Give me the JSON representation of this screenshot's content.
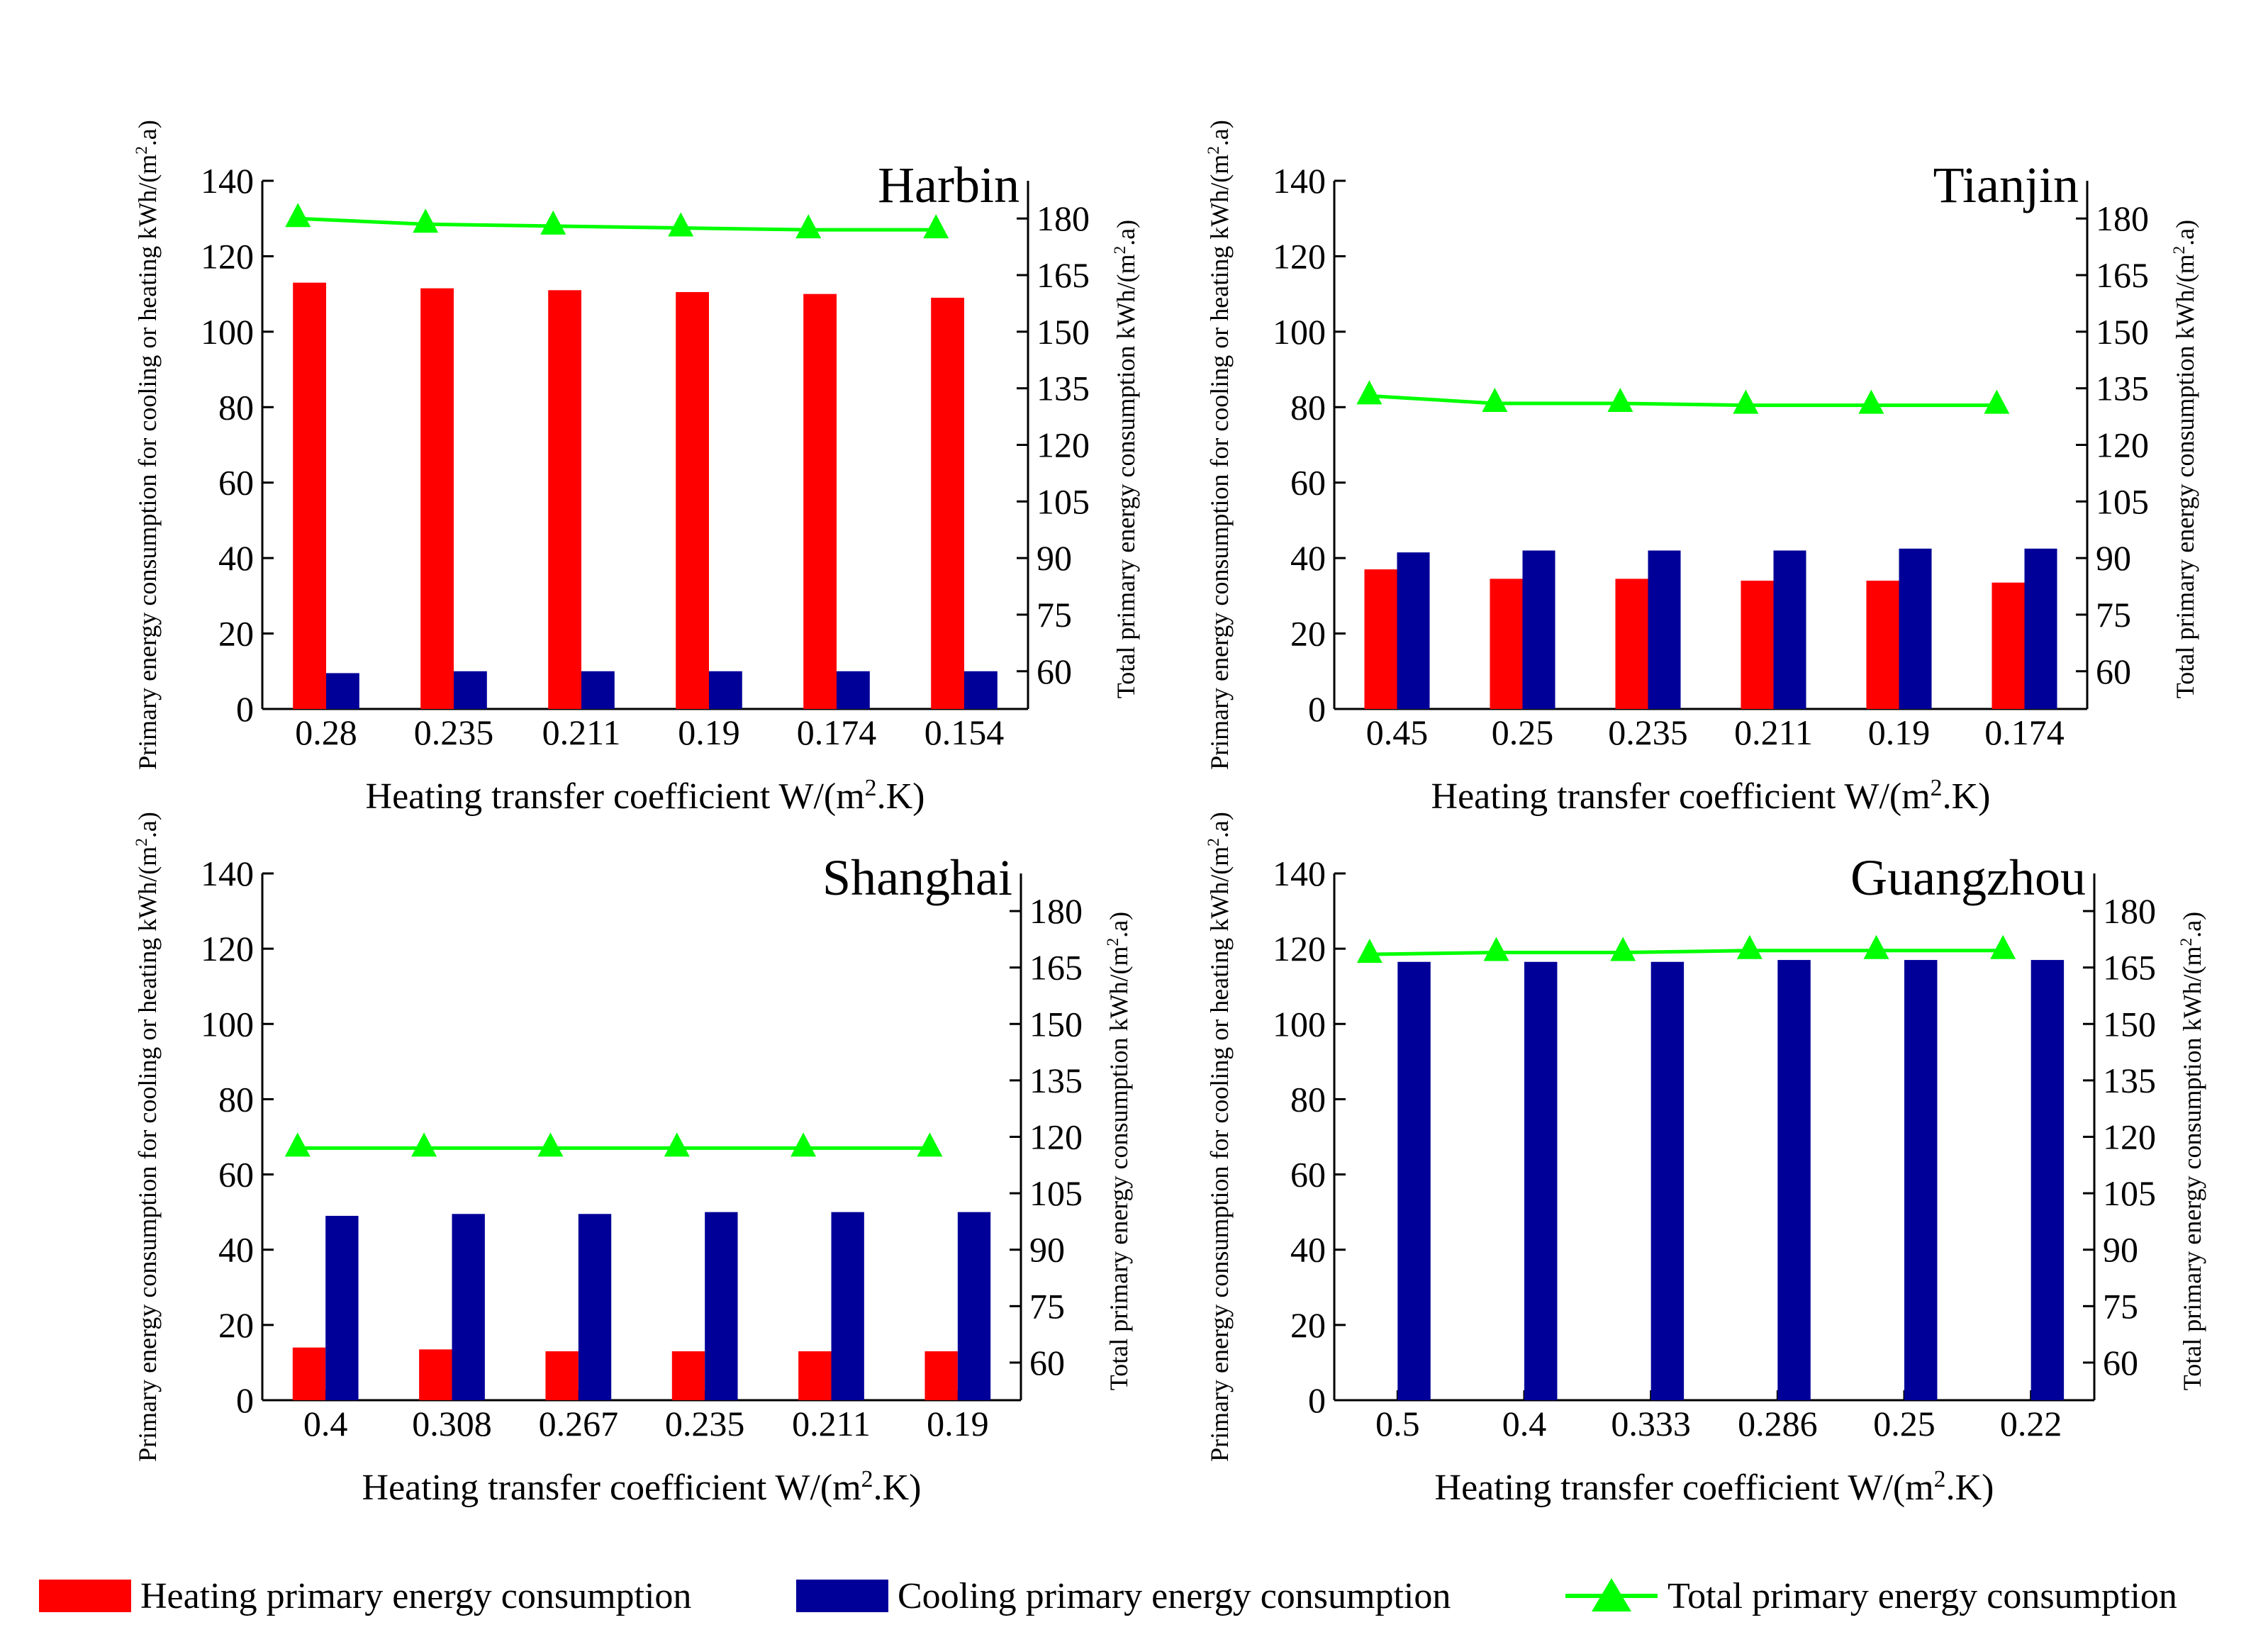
{
  "colors": {
    "heating": "#ff0000",
    "cooling": "#000099",
    "total": "#00ff00",
    "axis": "#000000"
  },
  "legend": {
    "heating_label": "Heating primary energy consumption",
    "cooling_label": "Cooling primary energy consumption",
    "total_label": "Total primary energy consumption"
  },
  "chart_data": [
    {
      "type": "bar",
      "title": "Harbin",
      "xlabel": "Heating transfer coefficient W/(m².K)",
      "ylabel": "Primary energy consumption for cooling or heating kWh/(m².a)",
      "y2label": "Total primary energy consumption kWh/(m².a)",
      "categories": [
        "0.28",
        "0.235",
        "0.211",
        "0.19",
        "0.174",
        "0.154"
      ],
      "ylim": [
        0,
        140
      ],
      "yticks": [
        "0",
        "20",
        "40",
        "60",
        "80",
        "100",
        "120",
        "140"
      ],
      "y2lim": [
        50,
        190
      ],
      "y2ticks": [
        "60",
        "75",
        "90",
        "105",
        "120",
        "135",
        "150",
        "165",
        "180"
      ],
      "series": [
        {
          "name": "Heating primary energy consumption",
          "axis": "left",
          "kind": "bar",
          "values": [
            113,
            111.5,
            111,
            110.5,
            110,
            109
          ]
        },
        {
          "name": "Cooling primary energy consumption",
          "axis": "left",
          "kind": "bar",
          "values": [
            9.5,
            10,
            10,
            10,
            10,
            10
          ]
        },
        {
          "name": "Total primary energy consumption",
          "axis": "right",
          "kind": "line",
          "values": [
            180,
            178.5,
            178,
            177.5,
            177,
            177
          ]
        }
      ]
    },
    {
      "type": "bar",
      "title": "Tianjin",
      "xlabel": "Heating transfer coefficient W/(m².K)",
      "ylabel": "Primary energy consumption for cooling or heating kWh/(m².a)",
      "y2label": "Total primary energy consumption kWh/(m².a)",
      "categories": [
        "0.45",
        "0.25",
        "0.235",
        "0.211",
        "0.19",
        "0.174"
      ],
      "ylim": [
        0,
        140
      ],
      "yticks": [
        "0",
        "20",
        "40",
        "60",
        "80",
        "100",
        "120",
        "140"
      ],
      "y2lim": [
        50,
        190
      ],
      "y2ticks": [
        "60",
        "75",
        "90",
        "105",
        "120",
        "135",
        "150",
        "165",
        "180"
      ],
      "series": [
        {
          "name": "Heating primary energy consumption",
          "axis": "left",
          "kind": "bar",
          "values": [
            37,
            34.5,
            34.5,
            34,
            34,
            33.5
          ]
        },
        {
          "name": "Cooling primary energy consumption",
          "axis": "left",
          "kind": "bar",
          "values": [
            41.5,
            42,
            42,
            42,
            42.5,
            42.5
          ]
        },
        {
          "name": "Total primary energy consumption",
          "axis": "right",
          "kind": "line",
          "values": [
            133,
            131,
            131,
            130.5,
            130.5,
            130.5
          ]
        }
      ]
    },
    {
      "type": "bar",
      "title": "Shanghai",
      "xlabel": "Heating transfer coefficient W/(m².K)",
      "ylabel": "Primary energy consumption for cooling or heating kWh/(m².a)",
      "y2label": "Total primary energy consumption kWh/(m².a)",
      "categories": [
        "0.4",
        "0.308",
        "0.267",
        "0.235",
        "0.211",
        "0.19"
      ],
      "ylim": [
        0,
        140
      ],
      "yticks": [
        "0",
        "20",
        "40",
        "60",
        "80",
        "100",
        "120",
        "140"
      ],
      "y2lim": [
        50,
        190
      ],
      "y2ticks": [
        "60",
        "75",
        "90",
        "105",
        "120",
        "135",
        "150",
        "165",
        "180"
      ],
      "series": [
        {
          "name": "Heating primary energy consumption",
          "axis": "left",
          "kind": "bar",
          "values": [
            14,
            13.5,
            13,
            13,
            13,
            13
          ]
        },
        {
          "name": "Cooling primary energy consumption",
          "axis": "left",
          "kind": "bar",
          "values": [
            49,
            49.5,
            49.5,
            50,
            50,
            50
          ]
        },
        {
          "name": "Total primary energy consumption",
          "axis": "right",
          "kind": "line",
          "values": [
            117,
            117,
            117,
            117,
            117,
            117
          ]
        }
      ]
    },
    {
      "type": "bar",
      "title": "Guangzhou",
      "xlabel": "Heating transfer coefficient W/(m².K)",
      "ylabel": "Primary energy consumption for cooling or heating kWh/(m².a)",
      "y2label": "Total primary energy consumption kWh/(m².a)",
      "categories": [
        "0.5",
        "0.4",
        "0.333",
        "0.286",
        "0.25",
        "0.22"
      ],
      "ylim": [
        0,
        140
      ],
      "yticks": [
        "0",
        "20",
        "40",
        "60",
        "80",
        "100",
        "120",
        "140"
      ],
      "y2lim": [
        50,
        190
      ],
      "y2ticks": [
        "60",
        "75",
        "90",
        "105",
        "120",
        "135",
        "150",
        "165",
        "180"
      ],
      "series": [
        {
          "name": "Heating primary energy consumption",
          "axis": "left",
          "kind": "bar",
          "values": [
            0,
            0,
            0,
            0,
            0,
            0
          ]
        },
        {
          "name": "Cooling primary energy consumption",
          "axis": "left",
          "kind": "bar",
          "values": [
            116.5,
            116.5,
            116.5,
            117,
            117,
            117
          ]
        },
        {
          "name": "Total primary energy consumption",
          "axis": "right",
          "kind": "line",
          "values": [
            168.5,
            169,
            169,
            169.5,
            169.5,
            169.5
          ]
        }
      ]
    }
  ]
}
